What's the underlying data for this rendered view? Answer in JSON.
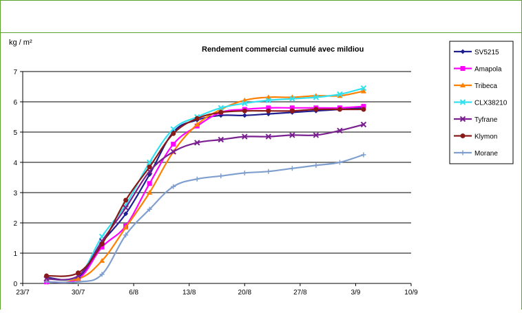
{
  "chart_data": {
    "type": "line",
    "title": "Rendement commercial cumulé avec mildiou",
    "ylabel": "kg / m²",
    "xlabel": "",
    "ylim": [
      0,
      7
    ],
    "y_ticks": [
      "0",
      "1",
      "2",
      "3",
      "4",
      "5",
      "6",
      "7"
    ],
    "x_tick_labels": [
      "23/7",
      "30/7",
      "6/8",
      "13/8",
      "20/8",
      "27/8",
      "3/9",
      "10/9"
    ],
    "x_range_days": [
      0,
      49
    ],
    "grid": "horizontal",
    "legend_position": "right",
    "x": [
      3,
      7,
      10,
      13,
      16,
      19,
      22,
      25,
      28,
      31,
      34,
      37,
      40,
      43
    ],
    "series": [
      {
        "name": "SV5215",
        "color": "#1f1f8f",
        "marker": "diamond",
        "values": [
          0.2,
          0.2,
          1.35,
          2.3,
          3.6,
          5.0,
          5.4,
          5.55,
          5.55,
          5.6,
          5.65,
          5.7,
          5.75,
          5.8
        ]
      },
      {
        "name": "Amapola",
        "color": "#ff00ff",
        "marker": "square",
        "values": [
          0.05,
          0.15,
          1.2,
          1.9,
          3.3,
          4.6,
          5.2,
          5.65,
          5.75,
          5.8,
          5.8,
          5.8,
          5.8,
          5.85
        ]
      },
      {
        "name": "Tribeca",
        "color": "#ff8000",
        "marker": "triangle",
        "values": [
          0.15,
          0.15,
          0.75,
          1.85,
          3.0,
          4.35,
          5.25,
          5.75,
          6.05,
          6.15,
          6.15,
          6.2,
          6.2,
          6.35
        ]
      },
      {
        "name": "CLX38210",
        "color": "#33e0f0",
        "marker": "x",
        "values": [
          0.15,
          0.25,
          1.55,
          2.6,
          4.0,
          5.1,
          5.5,
          5.8,
          5.95,
          6.05,
          6.1,
          6.15,
          6.25,
          6.45
        ]
      },
      {
        "name": "Tyfrane",
        "color": "#7a1f8f",
        "marker": "x",
        "values": [
          0.15,
          0.25,
          1.4,
          2.5,
          3.7,
          4.35,
          4.65,
          4.75,
          4.85,
          4.85,
          4.9,
          4.9,
          5.05,
          5.25
        ]
      },
      {
        "name": "Klymon",
        "color": "#8a1a1a",
        "marker": "circle",
        "values": [
          0.25,
          0.35,
          1.3,
          2.75,
          3.85,
          4.95,
          5.45,
          5.65,
          5.7,
          5.7,
          5.7,
          5.75,
          5.75,
          5.75
        ]
      },
      {
        "name": "Morane",
        "color": "#7f9fcf",
        "marker": "plus",
        "values": [
          0.05,
          0.05,
          0.3,
          1.6,
          2.45,
          3.2,
          3.45,
          3.55,
          3.65,
          3.7,
          3.8,
          3.9,
          4.0,
          4.25
        ]
      }
    ]
  }
}
